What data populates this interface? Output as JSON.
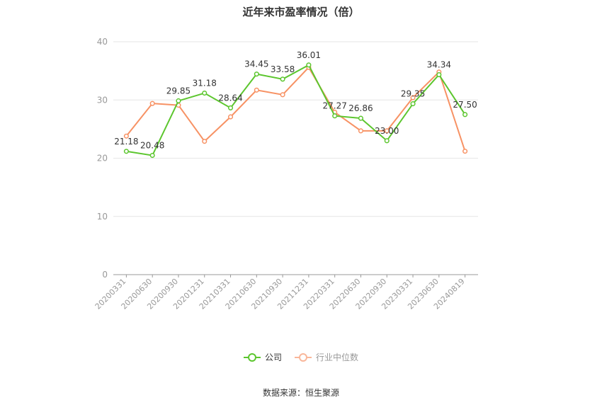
{
  "title": "近年来市盈率情况（倍）",
  "source": "数据来源：恒生聚源",
  "chart_data": {
    "type": "line",
    "title": "近年来市盈率情况（倍）",
    "categories": [
      "20200331",
      "20200630",
      "20200930",
      "20201231",
      "20210331",
      "20210630",
      "20210930",
      "20211231",
      "20220331",
      "20220630",
      "20220930",
      "20230331",
      "20230630",
      "20240819"
    ],
    "series": [
      {
        "name": "公司",
        "color": "#5cc62e",
        "values": [
          21.18,
          20.48,
          29.85,
          31.18,
          28.64,
          34.45,
          33.58,
          36.01,
          27.27,
          26.86,
          23.0,
          29.35,
          34.34,
          27.5
        ],
        "labels": [
          "21.18",
          "20.48",
          "29.85",
          "31.18",
          "28.64",
          "34.45",
          "33.58",
          "36.01",
          "27.27",
          "26.86",
          "23.00",
          "29.35",
          "34.34",
          "27.50"
        ]
      },
      {
        "name": "行业中位数",
        "color": "#f79264",
        "values": [
          23.8,
          29.4,
          29.1,
          22.9,
          27.1,
          31.7,
          30.9,
          35.6,
          27.9,
          24.7,
          24.7,
          30.4,
          34.8,
          21.2
        ]
      }
    ],
    "ylim": [
      0,
      40
    ],
    "yticks": [
      0,
      10,
      20,
      30,
      40
    ],
    "grid": true,
    "legend": "bottom-center"
  }
}
